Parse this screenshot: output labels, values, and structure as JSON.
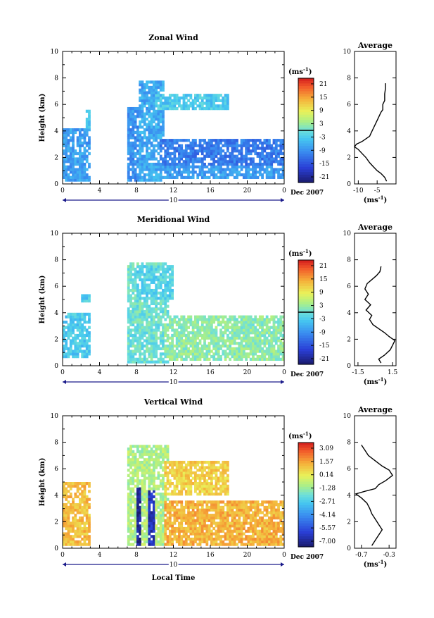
{
  "x_axis": {
    "ticks": [
      "0",
      "4",
      "8",
      "12",
      "16",
      "20",
      "0"
    ],
    "date_day": "10",
    "date_label": "Dec 2007",
    "xlabel": "Local Time"
  },
  "unit_label": "(ms",
  "unit_exp": "-1",
  "unit_close": ")",
  "panels": [
    {
      "title": "Zonal Wind",
      "ylabel": "Height (km)",
      "colorbar_ticks": [
        "21",
        "15",
        "9",
        "3",
        "-3",
        "-9",
        "-15",
        "-21"
      ],
      "avg": {
        "title": "Average",
        "xticks": [
          "-10",
          "-5"
        ],
        "xrange": [
          -11,
          0
        ],
        "profile": [
          [
            -2.5,
            0.2
          ],
          [
            -3,
            0.5
          ],
          [
            -4,
            0.8
          ],
          [
            -5,
            1.0
          ],
          [
            -6,
            1.3
          ],
          [
            -7,
            1.6
          ],
          [
            -8,
            2.0
          ],
          [
            -9,
            2.3
          ],
          [
            -10,
            2.6
          ],
          [
            -11,
            2.8
          ],
          [
            -10.5,
            3.0
          ],
          [
            -9,
            3.2
          ],
          [
            -8,
            3.4
          ],
          [
            -7,
            3.6
          ],
          [
            -6.5,
            3.9
          ],
          [
            -6,
            4.2
          ],
          [
            -5.5,
            4.5
          ],
          [
            -5,
            4.8
          ],
          [
            -4.5,
            5.1
          ],
          [
            -4,
            5.4
          ],
          [
            -3.5,
            5.6
          ],
          [
            -3.5,
            6.0
          ],
          [
            -3,
            6.3
          ],
          [
            -3,
            6.8
          ],
          [
            -2.8,
            7.2
          ],
          [
            -2.8,
            7.6
          ]
        ]
      }
    },
    {
      "title": "Meridional Wind",
      "ylabel": "Height (km)",
      "colorbar_ticks": [
        "21",
        "15",
        "9",
        "3",
        "-3",
        "-9",
        "-15",
        "-21"
      ],
      "avg": {
        "title": "Average",
        "xticks": [
          "-1.5",
          "1.5"
        ],
        "xrange": [
          -1.8,
          1.8
        ],
        "profile": [
          [
            0.5,
            0.2
          ],
          [
            0.3,
            0.5
          ],
          [
            0.8,
            0.8
          ],
          [
            1.3,
            1.2
          ],
          [
            1.7,
            1.9
          ],
          [
            1.2,
            2.2
          ],
          [
            0.8,
            2.5
          ],
          [
            0.3,
            2.8
          ],
          [
            -0.2,
            3.1
          ],
          [
            -0.5,
            3.5
          ],
          [
            -0.3,
            3.8
          ],
          [
            -0.8,
            4.2
          ],
          [
            -0.4,
            4.6
          ],
          [
            -0.9,
            5.0
          ],
          [
            -0.6,
            5.4
          ],
          [
            -0.9,
            5.8
          ],
          [
            -0.7,
            6.2
          ],
          [
            -0.3,
            6.5
          ],
          [
            0.1,
            6.8
          ],
          [
            0.4,
            7.1
          ],
          [
            0.5,
            7.5
          ]
        ]
      }
    },
    {
      "title": "Vertical Wind",
      "ylabel": "Height (km)",
      "colorbar_ticks": [
        "3.09",
        "1.57",
        "0.14",
        "-1.28",
        "-2.71",
        "-4.14",
        "-5.57",
        "-7.00"
      ],
      "avg": {
        "title": "Average",
        "xticks": [
          "-0.7",
          "-0.3"
        ],
        "xrange": [
          -0.8,
          -0.2
        ],
        "profile": [
          [
            -0.55,
            0.2
          ],
          [
            -0.5,
            0.6
          ],
          [
            -0.45,
            1.0
          ],
          [
            -0.4,
            1.4
          ],
          [
            -0.45,
            1.8
          ],
          [
            -0.5,
            2.2
          ],
          [
            -0.55,
            2.6
          ],
          [
            -0.58,
            3.0
          ],
          [
            -0.62,
            3.4
          ],
          [
            -0.7,
            3.8
          ],
          [
            -0.78,
            4.1
          ],
          [
            -0.65,
            4.3
          ],
          [
            -0.5,
            4.5
          ],
          [
            -0.45,
            4.8
          ],
          [
            -0.35,
            5.1
          ],
          [
            -0.25,
            5.5
          ],
          [
            -0.3,
            5.9
          ],
          [
            -0.4,
            6.2
          ],
          [
            -0.5,
            6.6
          ],
          [
            -0.6,
            7.0
          ],
          [
            -0.65,
            7.4
          ],
          [
            -0.7,
            7.8
          ]
        ]
      }
    }
  ],
  "chart_data": [
    {
      "type": "heatmap",
      "title": "Zonal Wind",
      "xlabel": "",
      "ylabel": "Height (km)",
      "xlim": [
        0,
        24
      ],
      "ylim": [
        0,
        10
      ],
      "colorbar_range": [
        -21,
        21
      ],
      "colorbar_unit": "ms-1",
      "contour_level": 0,
      "regions": [
        {
          "x": [
            0,
            3
          ],
          "y": [
            0.2,
            4.2
          ],
          "value": -7
        },
        {
          "x": [
            2.5,
            3
          ],
          "y": [
            4.2,
            5.6
          ],
          "value": -4
        },
        {
          "x": [
            6.8,
            8.5
          ],
          "y": [
            0.2,
            5.8
          ],
          "value": -8
        },
        {
          "x": [
            8.2,
            11
          ],
          "y": [
            0.2,
            7.8
          ],
          "value": -6
        },
        {
          "x": [
            11,
            24
          ],
          "y": [
            0.3,
            1.4
          ],
          "value": -7
        },
        {
          "x": [
            10.5,
            24
          ],
          "y": [
            1.4,
            3.3
          ],
          "value": -10
        },
        {
          "x": [
            10,
            18
          ],
          "y": [
            5.5,
            6.8
          ],
          "value": -3
        }
      ],
      "average_profile": {
        "title": "Average",
        "x": [
          -2.5,
          -3,
          -4,
          -5,
          -6,
          -7,
          -8,
          -9,
          -10,
          -11,
          -10.5,
          -9,
          -8,
          -7,
          -6.5,
          -6,
          -5.5,
          -5,
          -4.5,
          -4,
          -3.5,
          -3.5,
          -3,
          -3,
          -2.8,
          -2.8
        ],
        "height": [
          0.2,
          0.5,
          0.8,
          1.0,
          1.3,
          1.6,
          2.0,
          2.3,
          2.6,
          2.8,
          3.0,
          3.2,
          3.4,
          3.6,
          3.9,
          4.2,
          4.5,
          4.8,
          5.1,
          5.4,
          5.6,
          6.0,
          6.3,
          6.8,
          7.2,
          7.6
        ]
      }
    },
    {
      "type": "heatmap",
      "title": "Meridional Wind",
      "xlabel": "",
      "ylabel": "Height (km)",
      "xlim": [
        0,
        24
      ],
      "ylim": [
        0,
        10
      ],
      "colorbar_range": [
        -21,
        21
      ],
      "colorbar_unit": "ms-1",
      "contour_level": 0,
      "regions": [
        {
          "x": [
            0,
            3
          ],
          "y": [
            0.5,
            4.0
          ],
          "value": -3
        },
        {
          "x": [
            2,
            3
          ],
          "y": [
            4.8,
            5.3
          ],
          "value": -3
        },
        {
          "x": [
            7,
            11.5
          ],
          "y": [
            0.2,
            7.8
          ],
          "value": 0
        },
        {
          "x": [
            11,
            24
          ],
          "y": [
            0.3,
            3.8
          ],
          "value": 2
        },
        {
          "x": [
            8,
            12
          ],
          "y": [
            5.0,
            7.5
          ],
          "value": -2
        }
      ],
      "average_profile": {
        "title": "Average",
        "x": [
          0.5,
          0.3,
          0.8,
          1.3,
          1.7,
          1.2,
          0.8,
          0.3,
          -0.2,
          -0.5,
          -0.3,
          -0.8,
          -0.4,
          -0.9,
          -0.6,
          -0.9,
          -0.7,
          -0.3,
          0.1,
          0.4,
          0.5
        ],
        "height": [
          0.2,
          0.5,
          0.8,
          1.2,
          1.9,
          2.2,
          2.5,
          2.8,
          3.1,
          3.5,
          3.8,
          4.2,
          4.6,
          5.0,
          5.4,
          5.8,
          6.2,
          6.5,
          6.8,
          7.1,
          7.5
        ]
      }
    },
    {
      "type": "heatmap",
      "title": "Vertical Wind",
      "xlabel": "Local Time",
      "ylabel": "Height (km)",
      "xlim": [
        0,
        24
      ],
      "ylim": [
        0,
        10
      ],
      "colorbar_range": [
        -7.0,
        3.09
      ],
      "colorbar_unit": "ms-1",
      "regions": [
        {
          "x": [
            0,
            3
          ],
          "y": [
            0.2,
            5.0
          ],
          "value": 0.8
        },
        {
          "x": [
            7,
            11.5
          ],
          "y": [
            0.2,
            7.8
          ],
          "value": -1.0
        },
        {
          "x": [
            7.8,
            8.4
          ],
          "y": [
            0.2,
            4.6
          ],
          "value": -6.5
        },
        {
          "x": [
            9.2,
            9.8
          ],
          "y": [
            0.2,
            4.4
          ],
          "value": -6.0
        },
        {
          "x": [
            11,
            24
          ],
          "y": [
            0.2,
            3.6
          ],
          "value": 1.0
        },
        {
          "x": [
            11,
            18
          ],
          "y": [
            4.0,
            6.5
          ],
          "value": 0.5
        }
      ],
      "average_profile": {
        "title": "Average",
        "x": [
          -0.55,
          -0.5,
          -0.45,
          -0.4,
          -0.45,
          -0.5,
          -0.55,
          -0.58,
          -0.62,
          -0.7,
          -0.78,
          -0.65,
          -0.5,
          -0.45,
          -0.35,
          -0.25,
          -0.3,
          -0.4,
          -0.5,
          -0.6,
          -0.65,
          -0.7
        ],
        "height": [
          0.2,
          0.6,
          1.0,
          1.4,
          1.8,
          2.2,
          2.6,
          3.0,
          3.4,
          3.8,
          4.1,
          4.3,
          4.5,
          4.8,
          5.1,
          5.5,
          5.9,
          6.2,
          6.6,
          7.0,
          7.4,
          7.8
        ]
      }
    }
  ]
}
